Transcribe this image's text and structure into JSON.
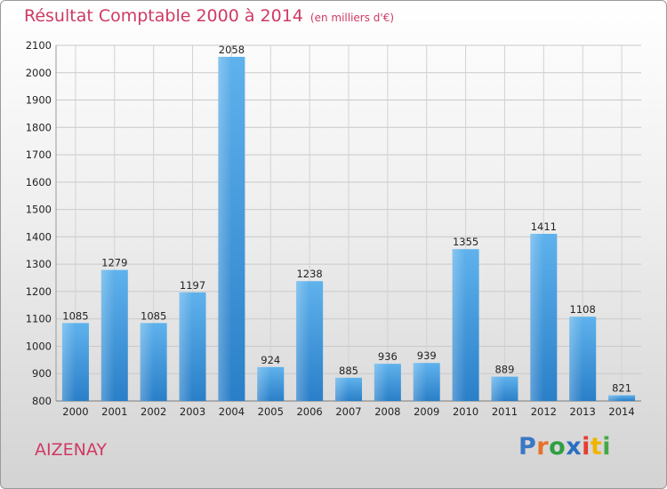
{
  "title": "Résultat Comptable 2000 à 2014",
  "unit": "(en milliers d'€)",
  "city": "AIZENAY",
  "logo": {
    "letters": [
      "P",
      "r",
      "o",
      "x",
      "i",
      "t",
      "i"
    ],
    "colors": [
      "#3a78c4",
      "#e8702a",
      "#2f9e44",
      "#2b6fc0",
      "#e63c2f",
      "#f0b400",
      "#45a845"
    ]
  },
  "chart_data": {
    "type": "bar",
    "title": "Résultat Comptable 2000 à 2014",
    "subtitle": "(en milliers d'€)",
    "xlabel": "",
    "ylabel": "",
    "categories": [
      "2000",
      "2001",
      "2002",
      "2003",
      "2004",
      "2005",
      "2006",
      "2007",
      "2008",
      "2009",
      "2010",
      "2011",
      "2012",
      "2013",
      "2014"
    ],
    "values": [
      1085,
      1279,
      1085,
      1197,
      2058,
      924,
      1238,
      885,
      936,
      939,
      1355,
      889,
      1411,
      1108,
      821
    ],
    "ylim": [
      800,
      2100
    ],
    "yticks": [
      800,
      900,
      1000,
      1100,
      1200,
      1300,
      1400,
      1500,
      1600,
      1700,
      1800,
      1900,
      2000,
      2100
    ],
    "grid": true,
    "bar_color": "#4a9fe0"
  }
}
